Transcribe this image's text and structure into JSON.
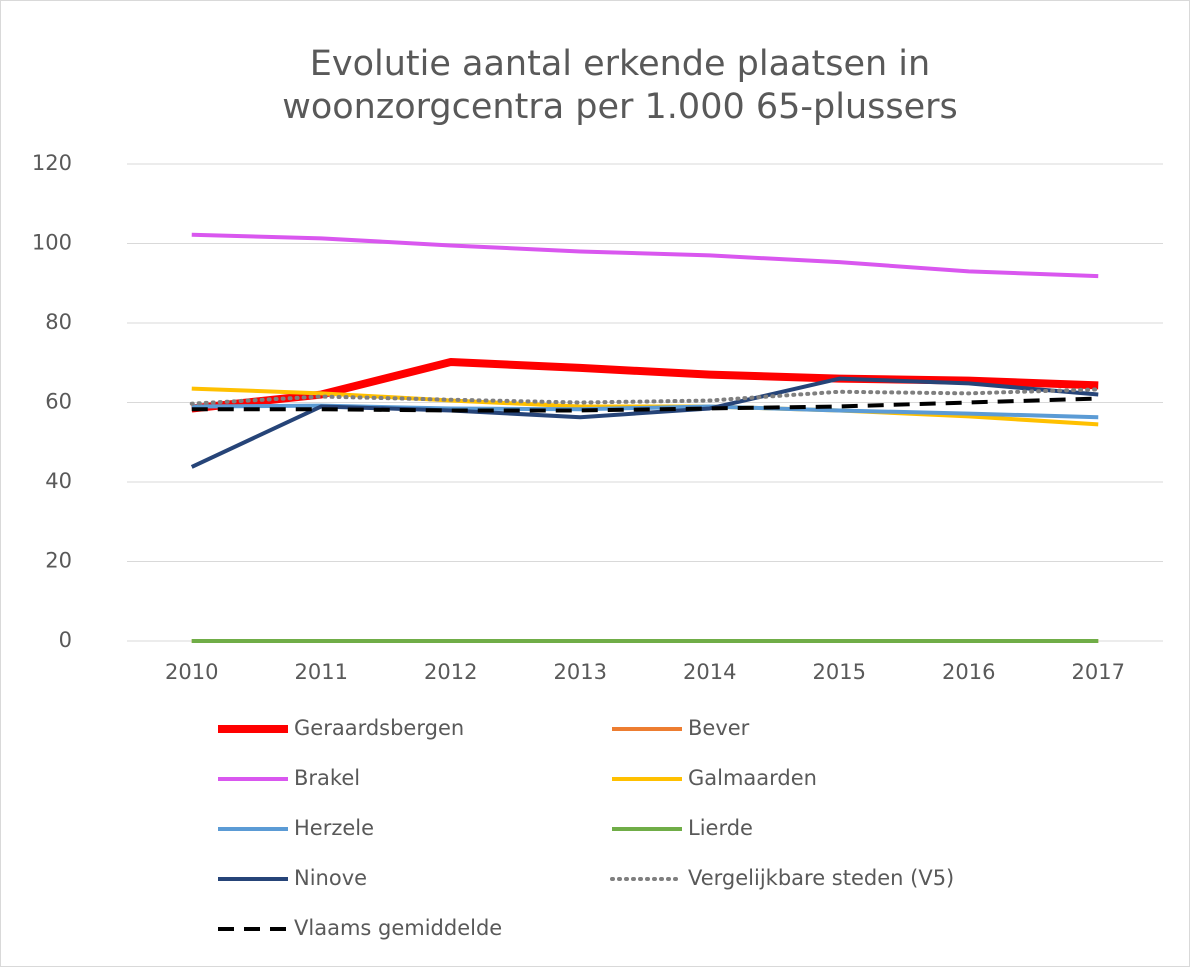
{
  "chart_data": {
    "type": "line",
    "title": [
      "Evolutie aantal erkende plaatsen in",
      "woonzorgcentra per 1.000 65-plussers"
    ],
    "categories": [
      "2010",
      "2011",
      "2012",
      "2013",
      "2014",
      "2015",
      "2016",
      "2017"
    ],
    "ylim": [
      0,
      120
    ],
    "yticks": [
      0,
      20,
      40,
      60,
      80,
      100,
      120
    ],
    "grid": true,
    "legend": "bottom",
    "series": [
      {
        "name": "Geraardsbergen",
        "color": "#ff0000",
        "line_style": "thick",
        "values": [
          58.5,
          62,
          70.2,
          68.7,
          67,
          66,
          65.5,
          64.3
        ]
      },
      {
        "name": "Bever",
        "color": "#ed7d31",
        "line_style": "solid",
        "values": [
          0,
          0,
          0,
          0,
          0,
          0,
          0,
          0
        ]
      },
      {
        "name": "Brakel",
        "color": "#d957ef",
        "line_style": "solid",
        "values": [
          102.2,
          101.3,
          99.5,
          98,
          97,
          95.3,
          93,
          91.8
        ]
      },
      {
        "name": "Galmaarden",
        "color": "#ffc000",
        "line_style": "solid",
        "values": [
          63.5,
          62.3,
          60.5,
          59,
          59,
          58,
          56.5,
          54.5
        ]
      },
      {
        "name": "Herzele",
        "color": "#5b9bd5",
        "line_style": "solid",
        "values": [
          59,
          59.2,
          58.5,
          58.3,
          59,
          58,
          57.2,
          56.3
        ]
      },
      {
        "name": "Lierde",
        "color": "#70ad47",
        "line_style": "solid",
        "values": [
          0,
          0,
          0,
          0,
          0,
          0,
          0,
          0
        ]
      },
      {
        "name": "Ninove",
        "color": "#264478",
        "line_style": "solid",
        "values": [
          43.8,
          59,
          58,
          56.3,
          58.5,
          66,
          64.8,
          62
        ]
      },
      {
        "name": "Vergelijkbare steden (V5)",
        "color": "#7f7f7f",
        "line_style": "dotted",
        "values": [
          59.7,
          61.5,
          60.7,
          60,
          60.5,
          62.7,
          62.3,
          63.3
        ]
      },
      {
        "name": "Vlaams gemiddelde",
        "color": "#000000",
        "line_style": "dashed",
        "values": [
          58.3,
          58.3,
          58,
          58,
          58.5,
          59,
          60,
          61
        ]
      }
    ]
  }
}
